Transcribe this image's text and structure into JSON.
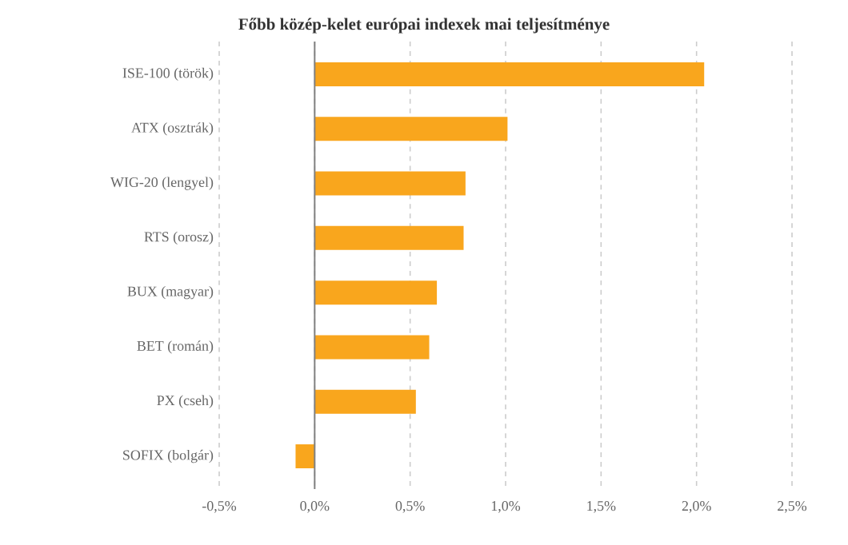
{
  "chart_data": {
    "type": "bar",
    "orientation": "horizontal",
    "title": "Főbb közép-kelet európai indexek mai teljesítménye",
    "categories": [
      "ISE-100 (török)",
      "ATX (osztrák)",
      "WIG-20 (lengyel)",
      "RTS (orosz)",
      "BUX (magyar)",
      "BET (román)",
      "PX (cseh)",
      "SOFIX (bolgár)"
    ],
    "values": [
      2.04,
      1.01,
      0.79,
      0.78,
      0.64,
      0.6,
      0.53,
      -0.1
    ],
    "color": "#f9a61d",
    "xlim": [
      -0.5,
      2.5
    ],
    "xticks": [
      {
        "value": -0.5,
        "label": "-0,5%"
      },
      {
        "value": 0,
        "label": "0,0%"
      },
      {
        "value": 0.5,
        "label": "0,5%"
      },
      {
        "value": 1,
        "label": "1,0%"
      },
      {
        "value": 1.5,
        "label": "1,5%"
      },
      {
        "value": 2,
        "label": "2,0%"
      },
      {
        "value": 2.5,
        "label": "2,5%"
      }
    ],
    "grid": "x"
  }
}
